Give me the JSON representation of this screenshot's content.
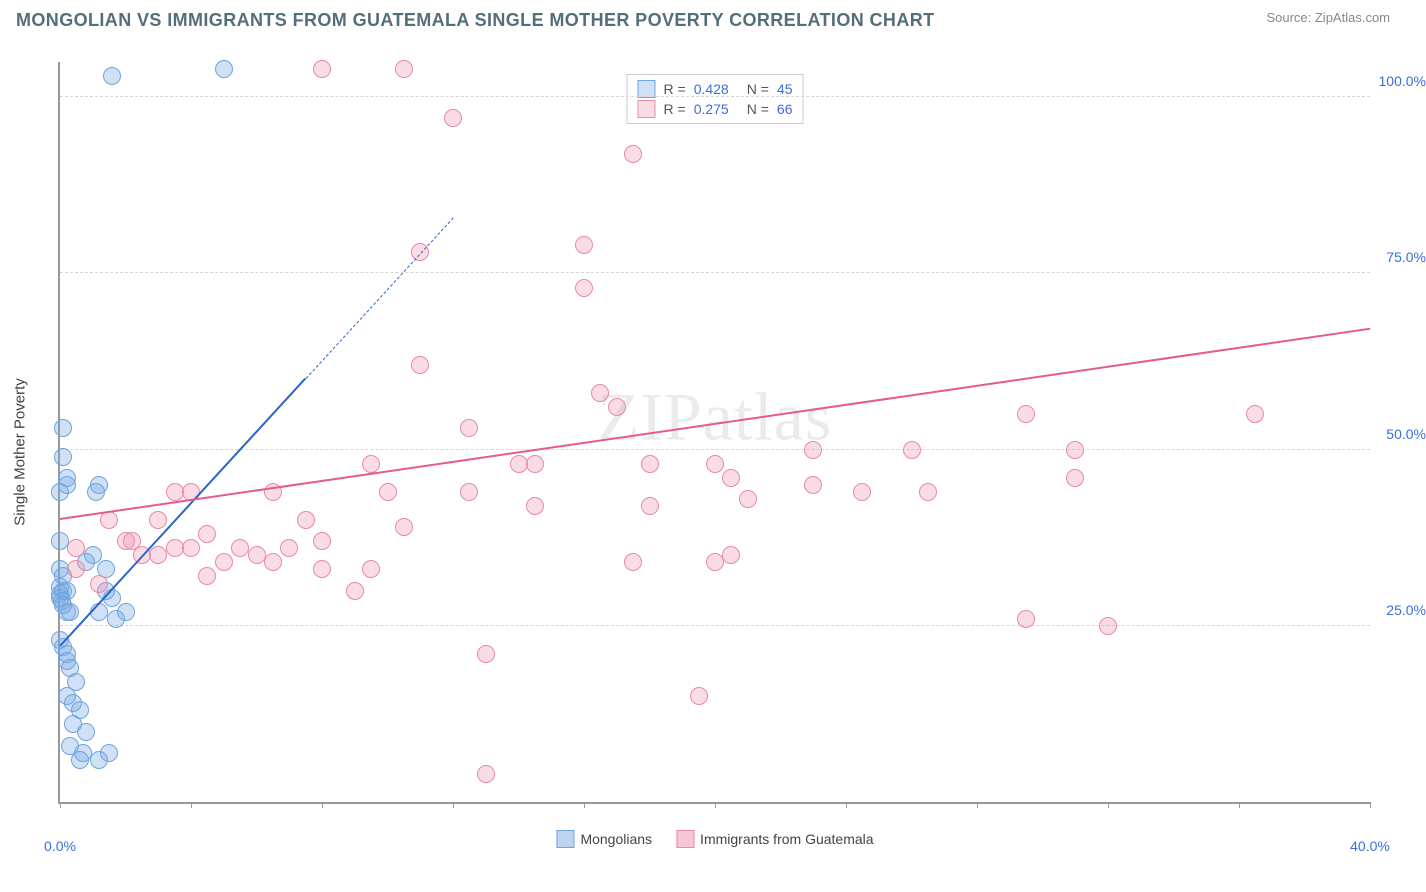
{
  "title": "MONGOLIAN VS IMMIGRANTS FROM GUATEMALA SINGLE MOTHER POVERTY CORRELATION CHART",
  "source_text": "Source: ZipAtlas.com",
  "watermark": "ZIPatlas",
  "y_axis_label": "Single Mother Poverty",
  "chart": {
    "type": "scatter",
    "xlim": [
      0,
      40
    ],
    "ylim": [
      0,
      105
    ],
    "x_ticks": [
      0,
      4,
      8,
      12,
      16,
      20,
      24,
      28,
      32,
      36,
      40
    ],
    "x_tick_labels": {
      "0": "0.0%",
      "40": "40.0%"
    },
    "y_ticks": [
      25,
      50,
      75,
      100
    ],
    "y_tick_labels": {
      "25": "25.0%",
      "50": "50.0%",
      "75": "75.0%",
      "100": "100.0%"
    },
    "grid_color": "#d7d7d7",
    "background_color": "#ffffff",
    "axis_color": "#999999",
    "tick_label_color": "#3a6fd8",
    "point_radius": 8,
    "series": [
      {
        "name": "Mongolians",
        "fill": "rgba(120,170,230,0.35)",
        "stroke": "#6fa5dd",
        "R": "0.428",
        "N": "45",
        "trend": {
          "x1": 0,
          "y1": 22,
          "x2": 7.5,
          "y2": 60,
          "color": "#2a66c8",
          "solid_until_x": 7.5,
          "dash_to_x": 12
        },
        "points": [
          [
            0.1,
            53
          ],
          [
            0.1,
            49
          ],
          [
            0.2,
            46
          ],
          [
            0.2,
            45
          ],
          [
            0.0,
            44
          ],
          [
            0.0,
            37
          ],
          [
            0.0,
            33
          ],
          [
            0.1,
            32
          ],
          [
            0.0,
            30.5
          ],
          [
            0.1,
            30
          ],
          [
            0.2,
            30
          ],
          [
            0.0,
            29.5
          ],
          [
            0.0,
            29
          ],
          [
            0.05,
            28.5
          ],
          [
            0.1,
            28
          ],
          [
            0.2,
            27
          ],
          [
            0.3,
            27
          ],
          [
            0.0,
            23
          ],
          [
            0.1,
            22
          ],
          [
            0.2,
            21
          ],
          [
            0.2,
            20
          ],
          [
            0.3,
            19
          ],
          [
            0.5,
            17
          ],
          [
            0.2,
            15
          ],
          [
            0.4,
            14
          ],
          [
            0.6,
            13
          ],
          [
            0.4,
            11
          ],
          [
            0.8,
            10
          ],
          [
            0.3,
            8
          ],
          [
            0.7,
            7
          ],
          [
            1.5,
            7
          ],
          [
            0.6,
            6
          ],
          [
            1.2,
            6
          ],
          [
            5.0,
            104
          ],
          [
            1.6,
            103
          ],
          [
            1.2,
            45
          ],
          [
            1.0,
            35
          ],
          [
            1.4,
            33
          ],
          [
            1.6,
            29
          ],
          [
            1.2,
            27
          ],
          [
            1.7,
            26
          ],
          [
            2.0,
            27
          ],
          [
            0.8,
            34
          ],
          [
            1.1,
            44
          ],
          [
            1.4,
            30
          ]
        ]
      },
      {
        "name": "Immigrants from Guatemala",
        "fill": "rgba(240,140,170,0.30)",
        "stroke": "#e88aa8",
        "R": "0.275",
        "N": "66",
        "trend": {
          "x1": 0,
          "y1": 40,
          "x2": 40,
          "y2": 67,
          "color": "#e85a8a"
        },
        "points": [
          [
            8.0,
            104
          ],
          [
            10.5,
            104
          ],
          [
            12.0,
            97
          ],
          [
            17.5,
            92
          ],
          [
            11.0,
            78
          ],
          [
            16.0,
            79
          ],
          [
            16.0,
            73
          ],
          [
            11.0,
            62
          ],
          [
            16.5,
            58
          ],
          [
            17.0,
            56
          ],
          [
            12.5,
            53
          ],
          [
            9.5,
            48
          ],
          [
            10.0,
            44
          ],
          [
            12.5,
            44
          ],
          [
            14.0,
            48
          ],
          [
            14.5,
            42
          ],
          [
            18.0,
            48
          ],
          [
            18.0,
            42
          ],
          [
            20.0,
            48
          ],
          [
            20.5,
            46
          ],
          [
            21.0,
            43
          ],
          [
            23.0,
            50
          ],
          [
            23.0,
            45
          ],
          [
            26.0,
            50
          ],
          [
            24.5,
            44
          ],
          [
            31.0,
            46
          ],
          [
            31.0,
            50
          ],
          [
            36.5,
            55
          ],
          [
            29.5,
            55
          ],
          [
            8.0,
            37
          ],
          [
            3.5,
            44
          ],
          [
            3.5,
            36
          ],
          [
            2.0,
            37
          ],
          [
            2.5,
            35
          ],
          [
            3.0,
            35
          ],
          [
            4.0,
            36
          ],
          [
            4.5,
            38
          ],
          [
            5.0,
            34
          ],
          [
            5.5,
            36
          ],
          [
            6.0,
            35
          ],
          [
            6.5,
            34
          ],
          [
            7.0,
            36
          ],
          [
            8.0,
            33
          ],
          [
            4.5,
            32
          ],
          [
            9.5,
            33
          ],
          [
            1.2,
            31
          ],
          [
            0.5,
            33
          ],
          [
            0.5,
            36
          ],
          [
            17.5,
            34
          ],
          [
            20.0,
            34
          ],
          [
            20.5,
            35
          ],
          [
            29.5,
            26
          ],
          [
            32.0,
            25
          ],
          [
            19.5,
            15
          ],
          [
            13.0,
            21
          ],
          [
            13.0,
            4
          ],
          [
            1.5,
            40
          ],
          [
            2.2,
            37
          ],
          [
            26.5,
            44
          ],
          [
            14.5,
            48
          ],
          [
            10.5,
            39
          ],
          [
            4.0,
            44
          ],
          [
            3.0,
            40
          ],
          [
            6.5,
            44
          ],
          [
            7.5,
            40
          ],
          [
            9.0,
            30
          ]
        ]
      }
    ],
    "legend_bottom": [
      {
        "label": "Mongolians",
        "fill": "rgba(120,170,230,0.5)",
        "stroke": "#6fa5dd"
      },
      {
        "label": "Immigrants from Guatemala",
        "fill": "rgba(240,140,170,0.5)",
        "stroke": "#e88aa8"
      }
    ]
  }
}
